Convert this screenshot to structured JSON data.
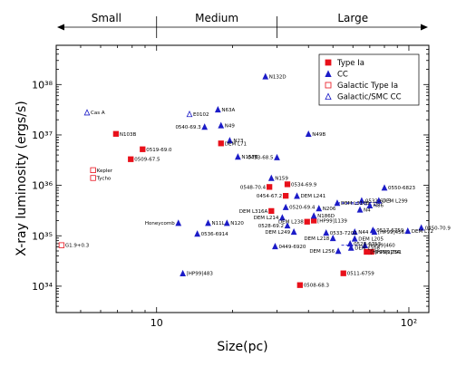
{
  "chart_data": {
    "type": "scatter",
    "xlabel": "Size(pc)",
    "ylabel": "X-ray luminosity (ergs/s)",
    "xscale": "log",
    "yscale": "log",
    "xlim": [
      4,
      120
    ],
    "ylim": [
      3e+33,
      6e+38
    ],
    "x_tick_values": [
      10,
      100
    ],
    "x_tick_labels": [
      "10",
      "10²"
    ],
    "y_tick_values": [
      1e+34,
      1e+35,
      1e+36,
      1e+37,
      1e+38
    ],
    "y_tick_labels": [
      "10³⁴",
      "10³⁵",
      "10³⁶",
      "10³⁷",
      "10³⁸"
    ],
    "grid": false,
    "legend_position": "top-right",
    "size_bands": [
      {
        "label": "Small",
        "from": 4,
        "to": 10
      },
      {
        "label": "Medium",
        "from": 10,
        "to": 30
      },
      {
        "label": "Large",
        "from": 30,
        "to": 120
      }
    ],
    "series": [
      {
        "name": "Type Ia",
        "marker": "square",
        "filled": true,
        "color": "#e8101a",
        "points": [
          {
            "x": 6.9,
            "y": 1.05e+37,
            "label": "N103B"
          },
          {
            "x": 8.8,
            "y": 5.2e+36,
            "label": "0519-69.0"
          },
          {
            "x": 7.9,
            "y": 3.3e+36,
            "label": "0509-67.5"
          },
          {
            "x": 18.0,
            "y": 6.8e+36,
            "label": "DEM L71"
          },
          {
            "x": 28.0,
            "y": 9.3e+35,
            "label": "0548-70.4"
          },
          {
            "x": 33.0,
            "y": 1.05e+36,
            "label": "0534-69.9"
          },
          {
            "x": 32.5,
            "y": 6.2e+35,
            "label": "0454-67.2"
          },
          {
            "x": 28.5,
            "y": 3.1e+35,
            "label": "DEM L316A"
          },
          {
            "x": 39.5,
            "y": 1.9e+35,
            "label": "DEM L238"
          },
          {
            "x": 42.0,
            "y": 2e+35,
            "label": "[HP99]1139"
          },
          {
            "x": 68.0,
            "y": 4.8e+34,
            "label": "[HP99]1234"
          },
          {
            "x": 71.0,
            "y": 4.8e+34,
            "label": "[HP99]791"
          },
          {
            "x": 37.0,
            "y": 1.05e+34,
            "label": "0508-68.3"
          },
          {
            "x": 55.0,
            "y": 1.8e+34,
            "label": "0511-6759"
          }
        ]
      },
      {
        "name": "CC",
        "marker": "triangle",
        "filled": true,
        "color": "#1c1cc8",
        "points": [
          {
            "x": 27.0,
            "y": 1.45e+38,
            "label": "N132D"
          },
          {
            "x": 17.5,
            "y": 3.2e+37,
            "label": "N63A"
          },
          {
            "x": 15.5,
            "y": 1.45e+37,
            "label": "0540-69.3"
          },
          {
            "x": 18.0,
            "y": 1.55e+37,
            "label": "N49"
          },
          {
            "x": 40.0,
            "y": 1.05e+37,
            "label": "N49B"
          },
          {
            "x": 19.5,
            "y": 7.8e+36,
            "label": "N23"
          },
          {
            "x": 21.0,
            "y": 3.7e+36,
            "label": "N157B"
          },
          {
            "x": 30.0,
            "y": 3.6e+36,
            "label": "0453-68.5"
          },
          {
            "x": 28.5,
            "y": 1.4e+36,
            "label": "N159"
          },
          {
            "x": 36.0,
            "y": 6.2e+35,
            "label": "DEM L241"
          },
          {
            "x": 32.5,
            "y": 3.7e+35,
            "label": "0520-69.4"
          },
          {
            "x": 80.0,
            "y": 9e+35,
            "label": "0550-6823"
          },
          {
            "x": 52.0,
            "y": 4.5e+35,
            "label": "DEM L316B"
          },
          {
            "x": 65.0,
            "y": 5e+35,
            "label": "0532-67.5"
          },
          {
            "x": 76.0,
            "y": 5e+35,
            "label": "DEM L299"
          },
          {
            "x": 70.0,
            "y": 4e+35,
            "label": "N86"
          },
          {
            "x": 44.0,
            "y": 3.5e+35,
            "label": "N206"
          },
          {
            "x": 64.0,
            "y": 3.3e+35,
            "label": "N4"
          },
          {
            "x": 31.5,
            "y": 2.3e+35,
            "label": "DEM L214"
          },
          {
            "x": 42.0,
            "y": 2.5e+35,
            "label": "N186D"
          },
          {
            "x": 12.2,
            "y": 1.8e+35,
            "label": "Honeycomb"
          },
          {
            "x": 16.0,
            "y": 1.8e+35,
            "label": "N11L"
          },
          {
            "x": 19.0,
            "y": 1.8e+35,
            "label": "N120"
          },
          {
            "x": 33.0,
            "y": 1.6e+35,
            "label": "0528-69.2"
          },
          {
            "x": 47.0,
            "y": 1.15e+35,
            "label": "0533-7202"
          },
          {
            "x": 14.5,
            "y": 1.1e+35,
            "label": "0536-6914"
          },
          {
            "x": 35.0,
            "y": 1.2e+35,
            "label": "DEM L249"
          },
          {
            "x": 61.0,
            "y": 1.2e+35,
            "label": "N44"
          },
          {
            "x": 50.0,
            "y": 9e+34,
            "label": "DEM L218"
          },
          {
            "x": 61.0,
            "y": 8.8e+34,
            "label": "DEM L205"
          },
          {
            "x": 72.0,
            "y": 1.3e+35,
            "label": "0517-6759"
          },
          {
            "x": 73.0,
            "y": 1.2e+35,
            "label": "[HP99]456"
          },
          {
            "x": 99.0,
            "y": 1.25e+35,
            "label": "DEM L72"
          },
          {
            "x": 112.0,
            "y": 1.45e+35,
            "label": "0450-70.9"
          },
          {
            "x": 58.5,
            "y": 7e+34,
            "label": "0528-6713"
          },
          {
            "x": 67.0,
            "y": 6.5e+34,
            "label": "[HP99]460"
          },
          {
            "x": 29.5,
            "y": 6.2e+34,
            "label": "0449-6920"
          },
          {
            "x": 52.5,
            "y": 5e+34,
            "label": "DEM L256"
          },
          {
            "x": 59.0,
            "y": 5.8e+34,
            "label": "DEM L108"
          },
          {
            "x": 12.7,
            "y": 1.8e+34,
            "label": "[HP99]483"
          }
        ]
      },
      {
        "name": "Galactic Type Ia",
        "marker": "square",
        "filled": false,
        "color": "#e8101a",
        "points": [
          {
            "x": 5.6,
            "y": 2e+36,
            "label": "Kepler"
          },
          {
            "x": 5.6,
            "y": 1.4e+36,
            "label": "Tycho"
          },
          {
            "x": 4.2,
            "y": 6.5e+34,
            "label": "G1.9+0.3"
          }
        ]
      },
      {
        "name": "Galactic/SMC CC",
        "marker": "triangle",
        "filled": false,
        "color": "#1c1cc8",
        "points": [
          {
            "x": 5.3,
            "y": 2.8e+37,
            "label": "Cas A"
          },
          {
            "x": 13.5,
            "y": 2.6e+37,
            "label": "E0102"
          }
        ]
      }
    ],
    "annotations": [
      {
        "type": "dashed-line",
        "from": [
          52.0,
          4.5e+35
        ],
        "to": [
          76.0,
          4.6e+35
        ],
        "color": "#1c1cc8"
      },
      {
        "type": "dashed-line",
        "from": [
          52.0,
          4.5e+35
        ],
        "to": [
          76.0,
          4e+35
        ],
        "color": "#1c1cc8"
      },
      {
        "type": "dashed-line",
        "from": [
          54.0,
          6.5e+34
        ],
        "to": [
          64.0,
          6.5e+34
        ],
        "color": "#1c1cc8"
      }
    ]
  }
}
